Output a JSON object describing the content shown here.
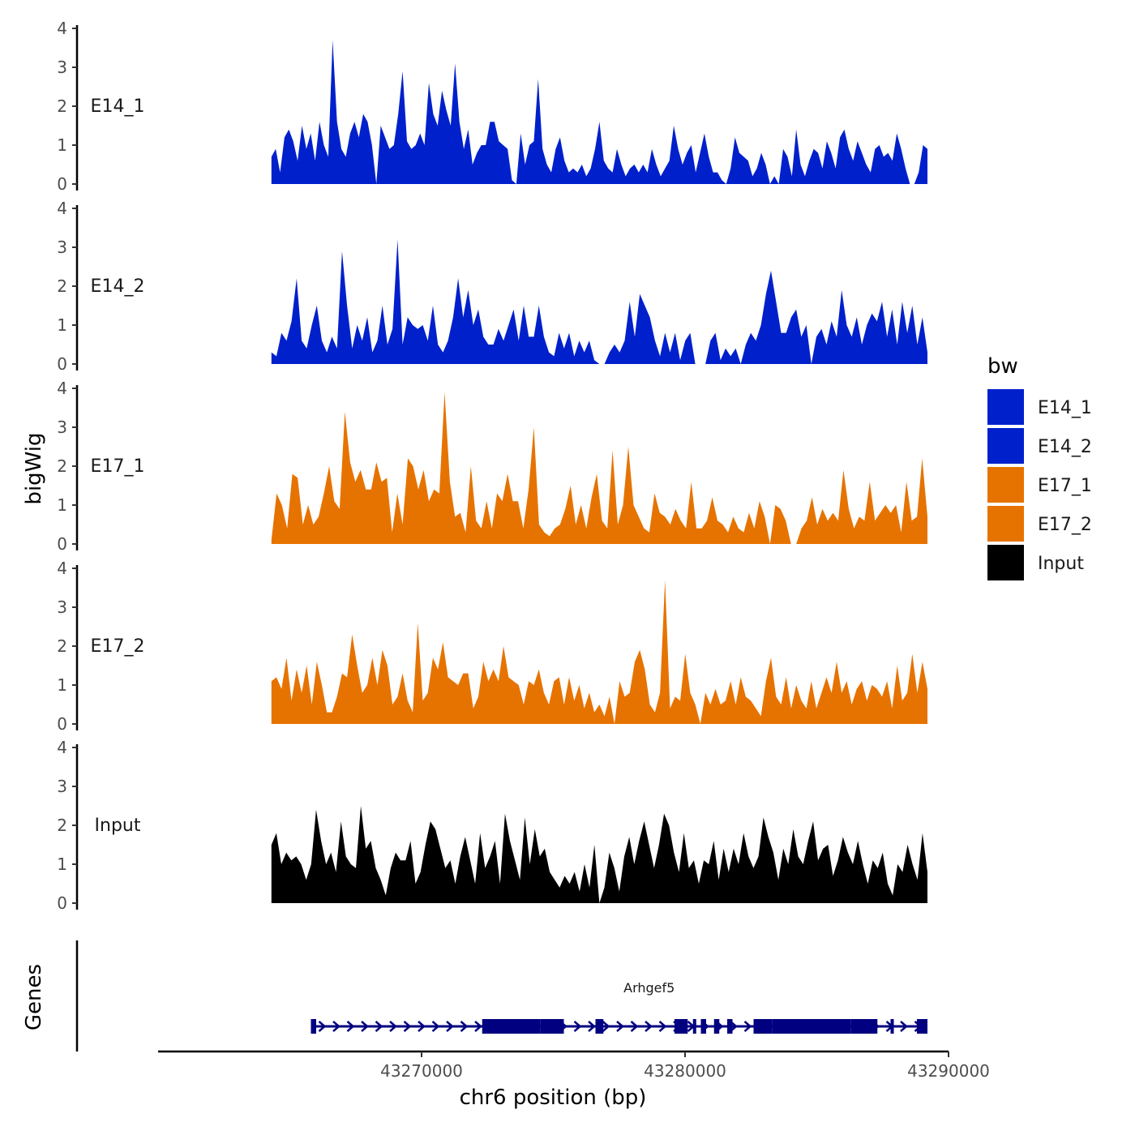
{
  "chart_data": {
    "type": "area",
    "title": "",
    "xlabel": "chr6 position (bp)",
    "ylabel": "bigWig",
    "genes_label": "Genes",
    "xlim": [
      43260000,
      43290000
    ],
    "region": [
      43264300,
      43289200
    ],
    "ylim": [
      0,
      4
    ],
    "x_ticks": [
      43270000,
      43280000,
      43290000
    ],
    "x_tick_labels": [
      "43270000",
      "43280000",
      "43290000"
    ],
    "y_ticks": [
      0,
      1,
      2,
      3,
      4
    ],
    "y_tick_labels": [
      "0",
      "1",
      "2",
      "3",
      "4"
    ],
    "legend": {
      "title": "bw",
      "entries": [
        {
          "label": "E14_1",
          "color": "#0020CC"
        },
        {
          "label": "E14_2",
          "color": "#0020CC"
        },
        {
          "label": "E17_1",
          "color": "#E67300"
        },
        {
          "label": "E17_2",
          "color": "#E67300"
        },
        {
          "label": "Input",
          "color": "#000000"
        }
      ]
    },
    "series": [
      {
        "name": "E14_1",
        "color": "#0020CC",
        "values": [
          0.7,
          0.9,
          0.3,
          1.2,
          1.4,
          1.1,
          0.6,
          1.5,
          0.9,
          1.3,
          0.6,
          1.6,
          1.0,
          0.7,
          3.7,
          1.6,
          0.9,
          0.7,
          1.3,
          1.6,
          1.2,
          1.8,
          1.6,
          1.0,
          0.0,
          1.5,
          1.2,
          0.9,
          1.0,
          1.8,
          2.9,
          1.1,
          0.9,
          1.0,
          1.3,
          1.0,
          2.6,
          1.8,
          1.5,
          2.4,
          1.9,
          1.5,
          3.1,
          1.6,
          0.9,
          1.4,
          0.5,
          0.8,
          1.0,
          1.0,
          1.6,
          1.6,
          1.1,
          1.0,
          0.9,
          0.1,
          0.0,
          1.3,
          0.5,
          1.0,
          1.1,
          2.7,
          0.9,
          0.5,
          0.3,
          0.9,
          1.2,
          0.6,
          0.3,
          0.4,
          0.3,
          0.5,
          0.2,
          0.4,
          0.9,
          1.6,
          0.6,
          0.4,
          0.3,
          0.9,
          0.5,
          0.2,
          0.4,
          0.5,
          0.3,
          0.5,
          0.3,
          0.9,
          0.5,
          0.2,
          0.4,
          0.6,
          1.5,
          0.9,
          0.5,
          0.8,
          1.0,
          0.3,
          0.8,
          1.3,
          0.7,
          0.3,
          0.3,
          0.1,
          0.0,
          0.4,
          1.2,
          0.8,
          0.7,
          0.6,
          0.2,
          0.4,
          0.8,
          0.5,
          0.0,
          0.2,
          0.0,
          0.9,
          0.7,
          0.2,
          1.4,
          0.5,
          0.2,
          0.6,
          0.9,
          0.8,
          0.4,
          1.1,
          0.8,
          0.4,
          1.2,
          1.4,
          0.9,
          0.6,
          1.1,
          0.8,
          0.5,
          0.3,
          0.9,
          1.0,
          0.7,
          0.8,
          0.6,
          1.3,
          0.9,
          0.4,
          0.0,
          0.0,
          0.3,
          1.0,
          0.9
        ]
      },
      {
        "name": "E14_2",
        "color": "#0020CC",
        "values": [
          0.3,
          0.2,
          0.8,
          0.6,
          1.1,
          2.2,
          0.6,
          0.4,
          1.0,
          1.5,
          0.6,
          0.3,
          0.7,
          0.4,
          2.9,
          1.5,
          0.4,
          1.0,
          0.6,
          1.2,
          0.3,
          0.6,
          1.5,
          0.5,
          0.9,
          3.2,
          0.5,
          1.2,
          1.0,
          0.9,
          1.0,
          0.6,
          1.5,
          0.5,
          0.3,
          0.6,
          1.2,
          2.2,
          1.2,
          1.9,
          1.0,
          1.4,
          0.7,
          0.5,
          0.5,
          0.9,
          0.6,
          1.0,
          1.4,
          0.6,
          1.5,
          0.7,
          0.7,
          1.5,
          0.7,
          0.3,
          0.2,
          0.8,
          0.4,
          0.8,
          0.2,
          0.6,
          0.3,
          0.6,
          0.1,
          0.0,
          0.0,
          0.3,
          0.5,
          0.3,
          0.6,
          1.6,
          0.7,
          1.8,
          1.5,
          1.2,
          0.6,
          0.2,
          0.8,
          0.3,
          0.8,
          0.1,
          0.6,
          0.8,
          0.0,
          0.0,
          0.0,
          0.6,
          0.8,
          0.1,
          0.4,
          0.2,
          0.4,
          0.0,
          0.5,
          0.8,
          0.6,
          1.0,
          1.8,
          2.4,
          1.6,
          0.8,
          0.8,
          1.2,
          1.4,
          0.7,
          1.0,
          0.0,
          0.7,
          0.9,
          0.5,
          1.1,
          0.7,
          1.9,
          1.0,
          0.7,
          1.2,
          0.5,
          1.0,
          1.3,
          1.1,
          1.6,
          0.7,
          1.4,
          0.5,
          1.6,
          0.8,
          1.5,
          0.5,
          1.2,
          0.3
        ]
      },
      {
        "name": "E17_1",
        "color": "#E67300",
        "values": [
          0.1,
          1.3,
          1.0,
          0.4,
          1.8,
          1.7,
          0.5,
          1.0,
          0.5,
          0.7,
          1.3,
          2.0,
          1.1,
          0.9,
          3.4,
          2.1,
          1.6,
          1.9,
          1.4,
          1.4,
          2.1,
          1.6,
          1.7,
          0.3,
          1.3,
          0.5,
          2.2,
          2.0,
          1.4,
          1.9,
          1.1,
          1.4,
          1.3,
          3.9,
          1.6,
          0.7,
          0.8,
          0.3,
          2.0,
          0.6,
          0.4,
          1.1,
          0.4,
          1.3,
          1.1,
          1.8,
          1.1,
          1.1,
          0.4,
          1.4,
          3.0,
          0.5,
          0.3,
          0.2,
          0.4,
          0.5,
          0.9,
          1.5,
          0.5,
          1.0,
          0.4,
          1.2,
          1.8,
          0.6,
          0.4,
          2.4,
          0.5,
          1.0,
          2.5,
          1.0,
          0.7,
          0.4,
          0.3,
          1.3,
          0.8,
          0.7,
          0.5,
          0.9,
          0.6,
          0.4,
          1.6,
          0.4,
          0.4,
          0.6,
          1.2,
          0.6,
          0.5,
          0.3,
          0.7,
          0.4,
          0.3,
          0.8,
          0.4,
          1.1,
          0.7,
          0.0,
          1.0,
          0.9,
          0.6,
          0.0,
          0.0,
          0.4,
          0.6,
          1.2,
          0.5,
          0.9,
          0.6,
          0.8,
          0.6,
          1.9,
          0.9,
          0.4,
          0.7,
          0.6,
          1.6,
          0.6,
          0.8,
          1.0,
          0.8,
          1.0,
          0.3,
          1.6,
          0.6,
          0.7,
          2.2,
          0.7
        ]
      },
      {
        "name": "E17_2",
        "color": "#E67300",
        "values": [
          1.1,
          1.2,
          0.9,
          1.7,
          0.6,
          1.4,
          0.8,
          1.5,
          0.5,
          1.6,
          1.0,
          0.3,
          0.3,
          0.7,
          1.3,
          1.2,
          2.3,
          1.5,
          0.8,
          1.0,
          1.7,
          1.0,
          1.9,
          1.5,
          0.5,
          0.7,
          1.3,
          0.6,
          0.3,
          2.6,
          0.6,
          0.8,
          1.7,
          1.4,
          2.1,
          1.2,
          1.1,
          1.0,
          1.3,
          1.3,
          0.4,
          0.7,
          1.6,
          1.1,
          1.4,
          1.1,
          2.0,
          1.2,
          1.1,
          1.0,
          0.5,
          1.1,
          1.0,
          1.4,
          0.8,
          0.5,
          1.1,
          1.2,
          0.5,
          1.2,
          0.6,
          1.0,
          0.4,
          0.8,
          0.3,
          0.5,
          0.2,
          0.7,
          0.0,
          1.1,
          0.7,
          0.8,
          1.6,
          1.9,
          1.4,
          0.5,
          0.3,
          0.8,
          3.7,
          0.4,
          0.7,
          0.6,
          1.8,
          0.8,
          0.5,
          0.0,
          0.8,
          0.5,
          0.9,
          0.5,
          0.6,
          1.1,
          0.5,
          1.2,
          0.7,
          0.6,
          0.4,
          0.2,
          1.1,
          1.7,
          0.7,
          0.5,
          1.2,
          0.4,
          1.0,
          0.6,
          0.4,
          1.1,
          0.4,
          0.8,
          1.2,
          0.8,
          1.6,
          0.8,
          1.1,
          0.5,
          0.9,
          1.1,
          0.6,
          1.0,
          0.9,
          0.7,
          1.1,
          0.4,
          1.5,
          0.6,
          0.8,
          1.8,
          0.8,
          1.6,
          0.9
        ]
      },
      {
        "name": "Input",
        "color": "#000000",
        "values": [
          1.5,
          1.8,
          1.0,
          1.3,
          1.1,
          1.2,
          1.0,
          0.6,
          1.0,
          2.4,
          1.6,
          1.0,
          1.3,
          0.8,
          2.1,
          1.2,
          1.0,
          0.9,
          2.5,
          1.4,
          1.6,
          0.9,
          0.6,
          0.2,
          0.9,
          1.3,
          1.1,
          1.1,
          1.6,
          0.5,
          0.8,
          1.5,
          2.1,
          1.9,
          1.4,
          0.9,
          1.1,
          0.5,
          1.2,
          1.7,
          1.1,
          0.5,
          1.8,
          0.9,
          1.2,
          1.6,
          0.5,
          2.3,
          1.6,
          1.1,
          0.6,
          2.2,
          1.0,
          1.9,
          1.2,
          1.4,
          0.8,
          0.6,
          0.4,
          0.7,
          0.5,
          0.8,
          0.3,
          1.0,
          0.4,
          1.5,
          0.0,
          0.4,
          1.3,
          0.9,
          0.3,
          1.2,
          1.7,
          1.0,
          1.6,
          2.1,
          1.5,
          0.9,
          1.5,
          2.3,
          2.0,
          1.3,
          0.8,
          1.8,
          0.9,
          1.1,
          0.5,
          1.1,
          1.0,
          1.6,
          0.6,
          1.4,
          0.8,
          1.4,
          1.0,
          1.8,
          1.2,
          0.9,
          1.2,
          2.2,
          1.7,
          1.3,
          0.6,
          1.4,
          1.0,
          1.9,
          1.2,
          1.0,
          1.6,
          2.1,
          1.1,
          1.4,
          1.5,
          0.7,
          1.1,
          1.7,
          1.3,
          1.0,
          1.6,
          1.0,
          0.5,
          1.1,
          0.9,
          1.3,
          0.5,
          0.2,
          1.0,
          0.8,
          1.5,
          1.0,
          0.6,
          1.8,
          0.8
        ]
      }
    ],
    "genes": [
      {
        "name": "Arhgef5",
        "color": "#000080",
        "strand": "+",
        "start": 43265800,
        "end": 43289200,
        "exons": [
          [
            43265800,
            43266000
          ],
          [
            43272300,
            43274500
          ],
          [
            43274500,
            43275400
          ],
          [
            43276600,
            43276900
          ],
          [
            43279600,
            43280100
          ],
          [
            43280300,
            43280400
          ],
          [
            43280600,
            43280800
          ],
          [
            43281100,
            43281300
          ],
          [
            43281600,
            43281800
          ],
          [
            43282600,
            43283300
          ],
          [
            43283300,
            43286300
          ],
          [
            43286300,
            43287300
          ],
          [
            43287800,
            43287900
          ],
          [
            43288800,
            43289200
          ]
        ]
      }
    ]
  }
}
